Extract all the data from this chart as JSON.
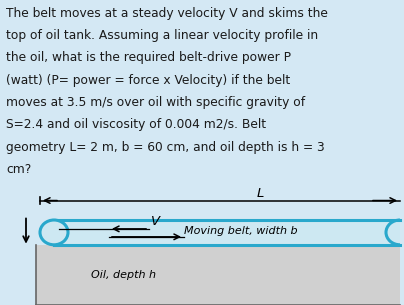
{
  "background_color": "#d4e8f4",
  "oil_color": "#d0d0d0",
  "belt_color": "#29a8cc",
  "belt_fill": "#cde8f2",
  "text_color": "#1a1a1a",
  "problem_text_lines": [
    "The belt moves at a steady velocity V and skims the",
    "top of oil tank. Assuming a linear velocity profile in",
    "the oil, what is the required belt-drive power P",
    "(watt) (P= power = force x Velocity) if the belt",
    "moves at 3.5 m/s over oil with specific gravity of",
    "S=2.4 and oil viscosity of 0.004 m2/s. Belt",
    "geometry L= 2 m, b = 60 cm, and oil depth is h = 3",
    "cm?"
  ],
  "label_L": "L",
  "label_V": "V",
  "label_belt": "Moving belt, width b",
  "label_oil": "Oil, depth h",
  "text_fontsize": 8.8,
  "label_fontsize": 8.0,
  "dim_fontsize": 9.5
}
